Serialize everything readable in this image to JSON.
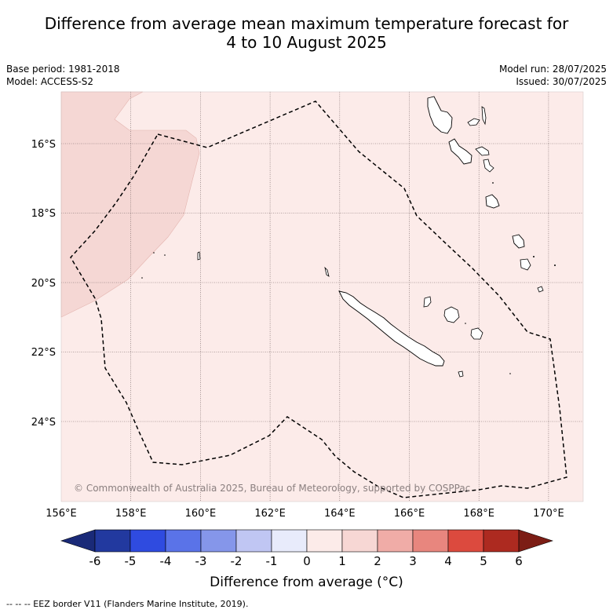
{
  "title_line1": "Difference from average mean maximum temperature forecast for",
  "title_line2": "4 to 10 August 2025",
  "base_period": "Base period: 1981-2018",
  "model": "Model: ACCESS-S2",
  "model_run": "Model run: 28/07/2025",
  "issued": "Issued: 30/07/2025",
  "lat_labels": [
    "16°S",
    "18°S",
    "20°S",
    "22°S",
    "24°S"
  ],
  "lon_labels": [
    "156°E",
    "158°E",
    "160°E",
    "162°E",
    "164°E",
    "166°E",
    "168°E",
    "170°E"
  ],
  "copyright": "© Commonwealth of Australia 2025, Bureau of Meteorology, supported by COSPPac",
  "colorbar": {
    "ticks": [
      "-6",
      "-5",
      "-4",
      "-3",
      "-2",
      "-1",
      "0",
      "1",
      "2",
      "3",
      "4",
      "5",
      "6"
    ],
    "colors": [
      "#22399f",
      "#2f4be0",
      "#5a73e8",
      "#8596ea",
      "#c0c6f3",
      "#e8ebfb",
      "#fcebe9",
      "#f7d7d4",
      "#f0aca7",
      "#e8867e",
      "#dc4a3e",
      "#ad2a20"
    ],
    "under_color": "#1a2a78",
    "over_color": "#7c1d15",
    "label": "Difference from average (°C)"
  },
  "colors": {
    "region_0_1": "#fcebe9",
    "region_1_2": "#f5d7d4"
  },
  "footer": "-- -- -- EEZ border V11 (Flanders Marine Institute, 2019)."
}
